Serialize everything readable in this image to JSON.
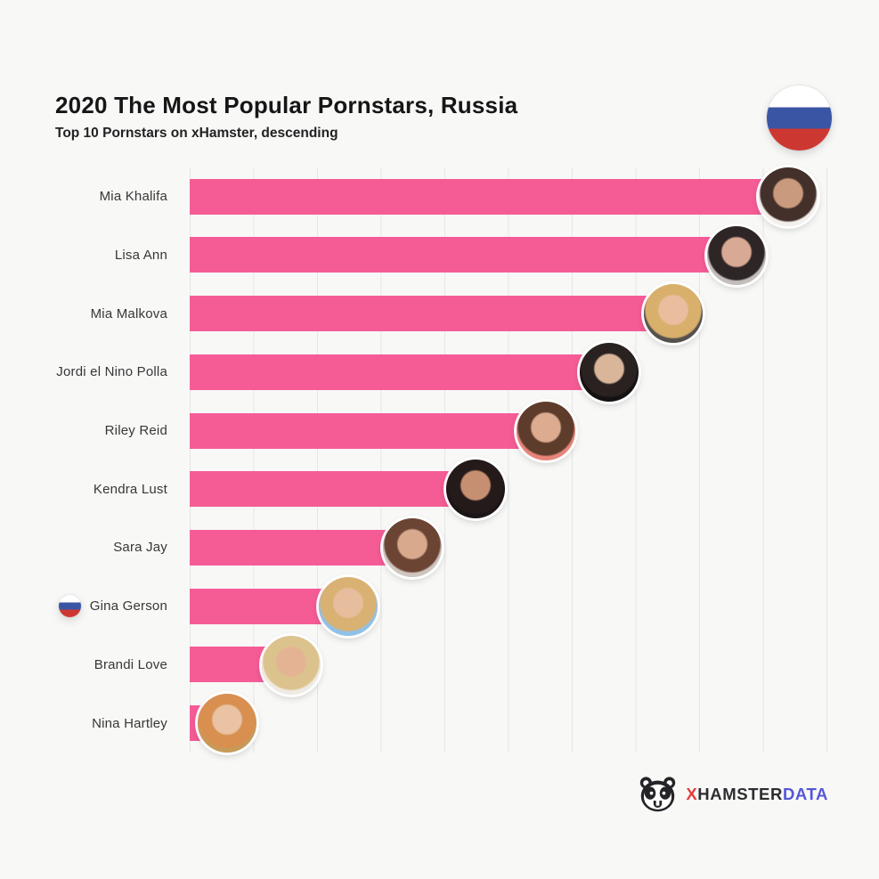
{
  "header": {
    "title": "2020 The Most Popular Pornstars, Russia",
    "subtitle": "Top 10 Pornstars on xHamster, descending",
    "country_flag": "russia-flag-circle",
    "flag_colors": {
      "white": "#ffffff",
      "blue": "#3a55a4",
      "red": "#cd3732"
    }
  },
  "chart_data": {
    "type": "bar",
    "orientation": "horizontal",
    "title": "2020 The Most Popular Pornstars, Russia",
    "subtitle": "Top 10 Pornstars on xHamster, descending",
    "categories": [
      "Mia Khalifa",
      "Lisa Ann",
      "Mia Malkova",
      "Jordi el Nino Polla",
      "Riley Reid",
      "Kendra Lust",
      "Sara Jay",
      "Gina Gerson",
      "Brandi Love",
      "Nina Hartley"
    ],
    "values": [
      90,
      82,
      72,
      62,
      52,
      41,
      31,
      21,
      12,
      2
    ],
    "value_note": "relative bar length in % of axis; no numeric axis labels shown",
    "xlim": [
      0,
      100
    ],
    "grid": "11 vertical gridlines, every 10 units",
    "legend": "none",
    "bar_color": "#f55c96",
    "rows": [
      {
        "label": "Mia Khalifa",
        "value": 90,
        "flag": false,
        "avatar": {
          "bg": "#f3efec",
          "hair": "#43302a",
          "skin": "#c99a7d"
        }
      },
      {
        "label": "Lisa Ann",
        "value": 82,
        "flag": false,
        "avatar": {
          "bg": "#c3bebb",
          "hair": "#2e2526",
          "skin": "#d8a994"
        }
      },
      {
        "label": "Mia Malkova",
        "value": 72,
        "flag": false,
        "avatar": {
          "bg": "#55504e",
          "hair": "#d8b06c",
          "skin": "#e9bd9e"
        }
      },
      {
        "label": "Jordi el Nino Polla",
        "value": 62,
        "flag": false,
        "avatar": {
          "bg": "#141112",
          "hair": "#2a2220",
          "skin": "#d9b59a"
        }
      },
      {
        "label": "Riley Reid",
        "value": 52,
        "flag": false,
        "avatar": {
          "bg": "#e8857a",
          "hair": "#5d3c2b",
          "skin": "#dcab90"
        }
      },
      {
        "label": "Kendra Lust",
        "value": 41,
        "flag": false,
        "avatar": {
          "bg": "#1c1517",
          "hair": "#241a19",
          "skin": "#c78f71"
        }
      },
      {
        "label": "Sara Jay",
        "value": 31,
        "flag": false,
        "avatar": {
          "bg": "#cfc6bf",
          "hair": "#6b4434",
          "skin": "#d8a98c"
        }
      },
      {
        "label": "Gina Gerson",
        "value": 21,
        "flag": true,
        "avatar": {
          "bg": "#90c1e8",
          "hair": "#d9b172",
          "skin": "#e6bd9d"
        }
      },
      {
        "label": "Brandi Love",
        "value": 12,
        "flag": false,
        "avatar": {
          "bg": "#efeae2",
          "hair": "#dcc28c",
          "skin": "#e3b394"
        }
      },
      {
        "label": "Nina Hartley",
        "value": 2,
        "flag": false,
        "avatar": {
          "bg": "#c79a58",
          "hair": "#d98f50",
          "skin": "#e9c3a4"
        }
      }
    ]
  },
  "footer": {
    "brand_icon": "hamster-icon",
    "brand_x": "X",
    "brand_hamster": "HAMSTER",
    "brand_data": "DATA"
  }
}
